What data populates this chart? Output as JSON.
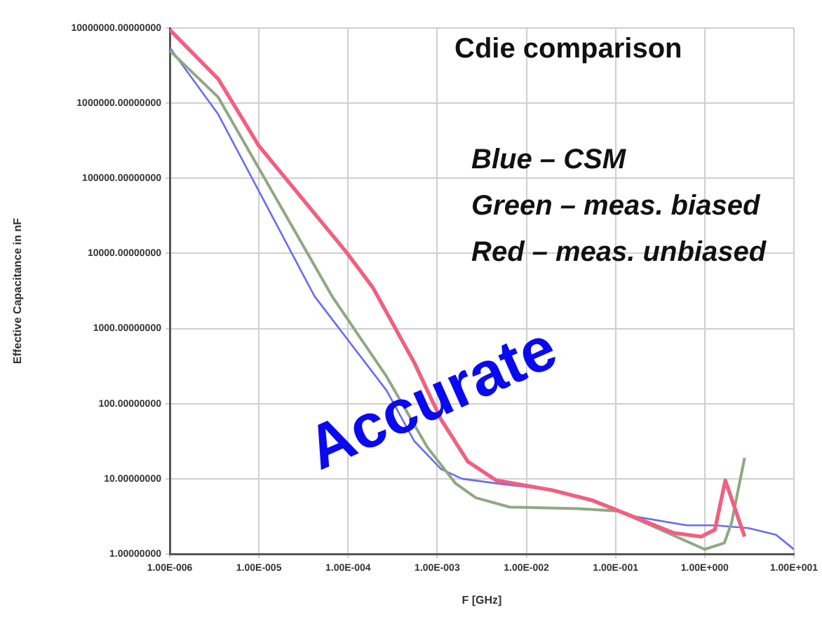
{
  "chart_data": {
    "type": "line",
    "xlabel": "F [GHz]",
    "ylabel": "Effective Capacitance in nF",
    "log": "xy",
    "grid": true,
    "marker": "none",
    "line_style": "solid",
    "annotations": [
      "Cdie comparison",
      "Blue – CSM",
      "Green – meas. biased",
      "Red – meas. unbiased",
      "Accurate"
    ],
    "xlim": [
      1e-06,
      10
    ],
    "ylim": [
      1,
      10000000
    ],
    "xticks": [
      {
        "value": 1e-06,
        "label": "1.00E-006"
      },
      {
        "value": 1e-05,
        "label": "1.00E-005"
      },
      {
        "value": 0.0001,
        "label": "1.00E-004"
      },
      {
        "value": 0.001,
        "label": "1.00E-003"
      },
      {
        "value": 0.01,
        "label": "1.00E-002"
      },
      {
        "value": 0.1,
        "label": "1.00E-001"
      },
      {
        "value": 1,
        "label": "1.00E+000"
      },
      {
        "value": 10,
        "label": "1.00E+001"
      }
    ],
    "yticks": [
      {
        "value": 1,
        "label": "1.00000000"
      },
      {
        "value": 10,
        "label": "10.00000000"
      },
      {
        "value": 100,
        "label": "100.00000000"
      },
      {
        "value": 1000,
        "label": "1000.00000000"
      },
      {
        "value": 10000,
        "label": "10000.00000000"
      },
      {
        "value": 100000,
        "label": "100000.00000000"
      },
      {
        "value": 1000000,
        "label": "1000000.00000000"
      },
      {
        "value": 10000000,
        "label": "10000000.00000000"
      }
    ],
    "series": [
      {
        "color": "#6b6bf0",
        "x": [
          1e-06,
          3.5e-06,
          4.2e-05,
          0.00027,
          0.00055,
          0.0011,
          0.0019,
          0.0046,
          0.019,
          0.054,
          0.15,
          0.63,
          1.3,
          3.1,
          6.3,
          10
        ],
        "values": [
          5500000,
          710000,
          2700,
          150,
          32,
          13.5,
          10,
          8.7,
          7.1,
          5.2,
          3.2,
          2.4,
          2.4,
          2.2,
          1.8,
          1.15
        ]
      },
      {
        "color": "#8fa882",
        "x": [
          1e-06,
          3.5e-06,
          6.6e-05,
          0.00027,
          0.00078,
          0.0016,
          0.0027,
          0.0065,
          0.038,
          0.11,
          0.32,
          1.0,
          1.66,
          2.0,
          2.8
        ],
        "values": [
          5000000,
          1200000,
          2700,
          230,
          26,
          8.7,
          5.6,
          4.2,
          4.0,
          3.7,
          2.1,
          1.15,
          1.4,
          2.6,
          19
        ]
      },
      {
        "color": "#f06080",
        "x": [
          1e-06,
          3.5e-06,
          1e-05,
          9.5e-05,
          0.00019,
          0.00055,
          0.0011,
          0.0022,
          0.0046,
          0.019,
          0.054,
          0.15,
          0.45,
          0.91,
          1.3,
          1.7,
          2.8
        ],
        "values": [
          9500000,
          2100000,
          270000,
          10500,
          3500,
          355,
          62,
          17,
          9.5,
          7.1,
          5.2,
          3.2,
          1.9,
          1.7,
          2.1,
          9.5,
          1.7
        ]
      }
    ]
  }
}
